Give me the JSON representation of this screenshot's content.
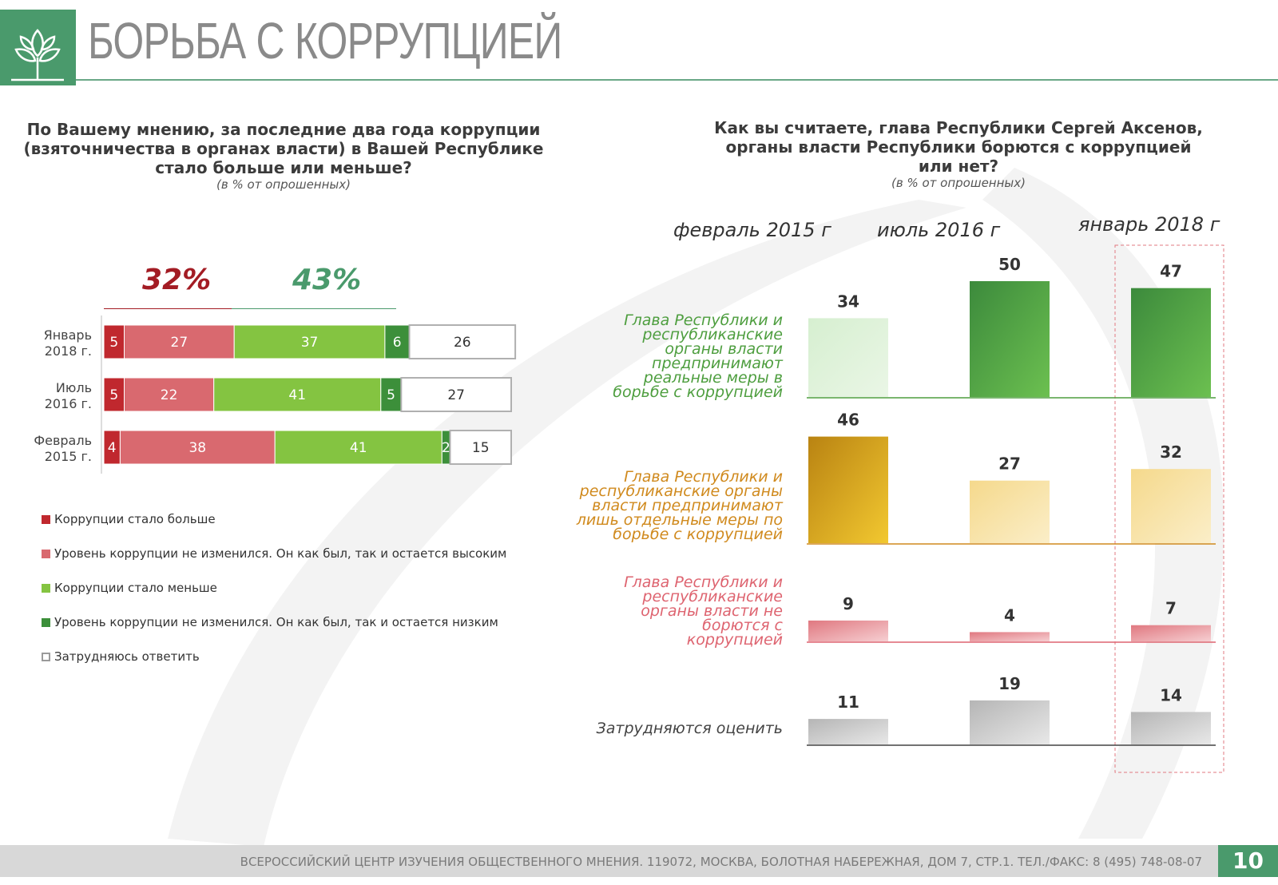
{
  "header": {
    "title": "БОРЬБА С КОРРУПЦИЕЙ"
  },
  "left_chart": {
    "question_lines": [
      "По Вашему мнению, за последние два года коррупции",
      "(взяточничества в органах власти) в Вашей Республике",
      "стало больше или меньше?"
    ],
    "subtitle": "(в % от опрошенных)",
    "summary_red": "32%",
    "summary_green": "43%",
    "legend": [
      {
        "label": "Коррупции стало больше",
        "color": "#c0282e"
      },
      {
        "label": "Уровень коррупции не изменился. Он как был, так и остается высоким",
        "color": "#d9696f"
      },
      {
        "label": "Коррупции стало меньше",
        "color": "#84c441"
      },
      {
        "label": "Уровень коррупции не изменился. Он как был, так и остается низким",
        "color": "#3c8f3a"
      },
      {
        "label": "Затрудняюсь ответить",
        "color": "#ffffff"
      }
    ]
  },
  "right_chart": {
    "question_lines": [
      "Как вы считаете, глава Республики Сергей Аксенов,",
      "органы власти Республики борются с коррупцией",
      "или нет?"
    ],
    "subtitle": "(в % от опрошенных)",
    "categories": [
      {
        "label_lines": [
          "Глава Республики и",
          "республиканские",
          "органы власти",
          "предпринимают",
          "реальные меры в",
          "борьбе с коррупцией"
        ],
        "color": "#4e9e3f"
      },
      {
        "label_lines": [
          "Глава Республики и",
          "республиканские органы",
          "власти предпринимают",
          "лишь отдельные меры по",
          "борьбе с коррупцией"
        ],
        "color": "#d08a1e"
      },
      {
        "label_lines": [
          "Глава Республики и",
          "республиканские",
          "органы власти не",
          "борются с",
          "коррупцией"
        ],
        "color": "#de6470"
      },
      {
        "label_lines": [
          "Затрудняются оценить"
        ],
        "color": "#444444"
      }
    ]
  },
  "footer": {
    "text": "ВСЕРОССИЙСКИЙ ЦЕНТР ИЗУЧЕНИЯ ОБЩЕСТВЕННОГО МНЕНИЯ. 119072, МОСКВА, БОЛОТНАЯ НАБЕРЕЖНАЯ, ДОМ 7, СТР.1. ТЕЛ./ФАКС: 8 (495) 748-08-07",
    "page": "10"
  },
  "chart_data": [
    {
      "type": "bar",
      "orientation": "horizontal",
      "stacked": true,
      "categories": [
        "Январь 2018 г.",
        "Июль 2016 г.",
        "Февраль 2015 г."
      ],
      "series": [
        {
          "name": "Коррупции стало больше",
          "values": [
            5,
            5,
            4
          ],
          "color": "#c0282e"
        },
        {
          "name": "Уровень коррупции не изменился. Он как был, так и остается высоким",
          "values": [
            27,
            22,
            38
          ],
          "color": "#d9696f"
        },
        {
          "name": "Коррупции стало меньше",
          "values": [
            37,
            41,
            41
          ],
          "color": "#84c441"
        },
        {
          "name": "Уровень коррупции не изменился. Он как был, так и остается низким",
          "values": [
            6,
            5,
            2
          ],
          "color": "#3c8f3a"
        },
        {
          "name": "Затрудняюсь ответить",
          "values": [
            26,
            27,
            15
          ],
          "color": "#ffffff"
        }
      ],
      "xlim": [
        0,
        100
      ]
    },
    {
      "type": "bar",
      "x": [
        "февраль 2015 г",
        "июль 2016 г",
        "январь 2018 г"
      ],
      "series": [
        {
          "name": "Глава Республики и республиканские органы власти предпринимают реальные меры в борьбе с коррупцией",
          "values": [
            34,
            50,
            47
          ]
        },
        {
          "name": "Глава Республики и республиканские органы власти предпринимают лишь отдельные меры по борьбе с коррупцией",
          "values": [
            46,
            27,
            32
          ]
        },
        {
          "name": "Глава Республики и республиканские органы власти не борются с коррупцией",
          "values": [
            9,
            4,
            7
          ]
        },
        {
          "name": "Затрудняются оценить",
          "values": [
            11,
            19,
            14
          ]
        }
      ],
      "highlighted_period": "январь 2018 г"
    }
  ]
}
